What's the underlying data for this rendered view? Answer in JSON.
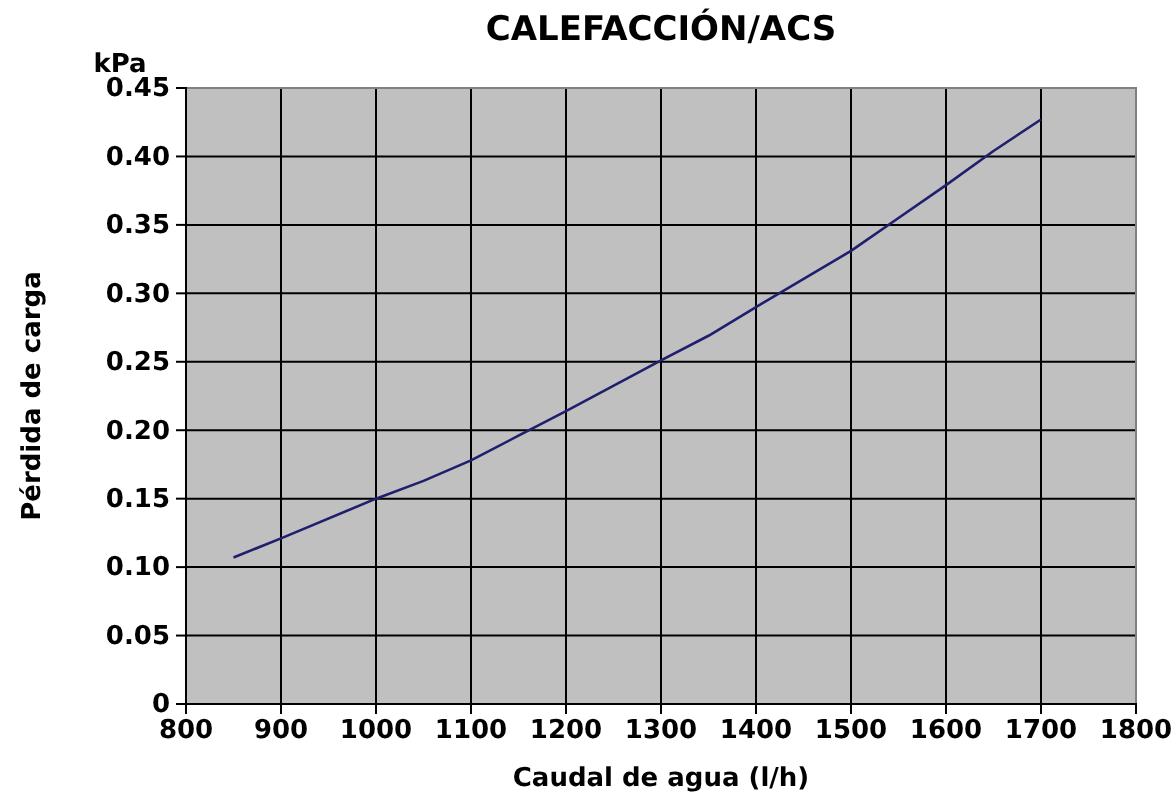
{
  "chart_data": {
    "type": "line",
    "title": "CALEFACCIÓN/ACS",
    "xlabel": "Caudal de agua (l/h)",
    "ylabel": "Pérdida de carga",
    "annotations": [
      "kPa"
    ],
    "x": [
      850,
      900,
      1000,
      1050,
      1100,
      1150,
      1200,
      1300,
      1350,
      1400,
      1500,
      1550,
      1600,
      1650,
      1700
    ],
    "series": [
      {
        "color": "#1f1f6e",
        "values": [
          0.107,
          0.121,
          0.15,
          0.163,
          0.178,
          0.196,
          0.214,
          0.251,
          0.269,
          0.29,
          0.331,
          0.355,
          0.379,
          0.404,
          0.427
        ]
      }
    ],
    "xlim": [
      800,
      1800
    ],
    "xticks": [
      800,
      900,
      1000,
      1100,
      1200,
      1300,
      1400,
      1500,
      1600,
      1700,
      1800
    ],
    "ylim": [
      0,
      0.45
    ],
    "yticks": [
      {
        "value": 0,
        "label": "0"
      },
      {
        "value": 0.05,
        "label": "0.05"
      },
      {
        "value": 0.1,
        "label": "0.10"
      },
      {
        "value": 0.15,
        "label": "0.15"
      },
      {
        "value": 0.2,
        "label": "0.20"
      },
      {
        "value": 0.25,
        "label": "0.25"
      },
      {
        "value": 0.3,
        "label": "0.30"
      },
      {
        "value": 0.35,
        "label": "0.35"
      },
      {
        "value": 0.4,
        "label": "0.40"
      },
      {
        "value": 0.45,
        "label": "0.45"
      }
    ],
    "grid": true,
    "marker": "none",
    "line_style": "solid"
  }
}
